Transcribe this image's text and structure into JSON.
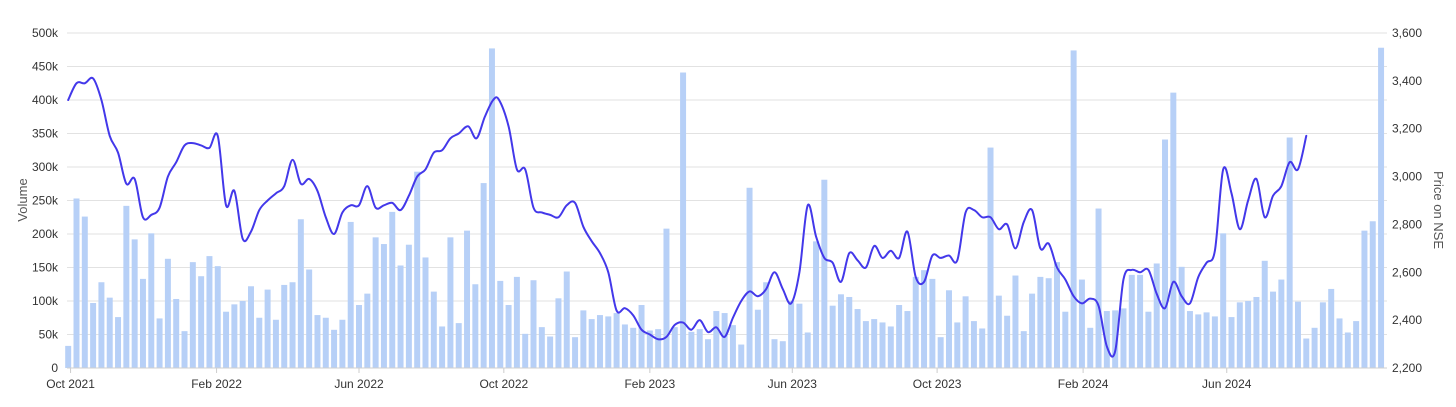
{
  "chart_data": {
    "type": "bar+line",
    "title": "",
    "xlabel": "",
    "ylabel": "Volume",
    "y2label": "Price on NSE",
    "ylim": [
      0,
      500000
    ],
    "y2lim": [
      2200,
      3600
    ],
    "x_range": [
      "2021-09-28",
      "2024-10-14"
    ],
    "grid": true,
    "legend": "none",
    "colors": {
      "bars": "#b7d0f7",
      "line": "#4338ea"
    },
    "y_ticks": [
      "0",
      "50k",
      "100k",
      "150k",
      "200k",
      "250k",
      "300k",
      "350k",
      "400k",
      "450k",
      "500k"
    ],
    "y2_ticks": [
      "2,200",
      "2,400",
      "2,600",
      "2,800",
      "3,000",
      "3,200",
      "3,400",
      "3,600"
    ],
    "x_ticks": [
      {
        "date": "2021-10-01",
        "label": "Oct 2021"
      },
      {
        "date": "2022-02-01",
        "label": "Feb 2022"
      },
      {
        "date": "2022-06-01",
        "label": "Jun 2022"
      },
      {
        "date": "2022-10-01",
        "label": "Oct 2022"
      },
      {
        "date": "2023-02-01",
        "label": "Feb 2023"
      },
      {
        "date": "2023-06-01",
        "label": "Jun 2023"
      },
      {
        "date": "2023-10-01",
        "label": "Oct 2023"
      },
      {
        "date": "2024-02-01",
        "label": "Feb 2024"
      },
      {
        "date": "2024-06-01",
        "label": "Jun 2024"
      }
    ],
    "series": [
      {
        "kind": "bar",
        "axis": "left",
        "start_date": "2021-09-29",
        "interval_days": 7,
        "values": [
          33000,
          253000,
          226000,
          97000,
          128000,
          105000,
          76000,
          242000,
          192000,
          133000,
          201000,
          74000,
          163000,
          103000,
          55000,
          158000,
          137000,
          167000,
          152000,
          84000,
          95000,
          100000,
          122000,
          75000,
          117000,
          72000,
          124000,
          128000,
          222000,
          147000,
          79000,
          75000,
          57000,
          72000,
          218000,
          94000,
          111000,
          195000,
          185000,
          233000,
          153000,
          184000,
          293000,
          165000,
          114000,
          62000,
          195000,
          67000,
          205000,
          125000,
          276000,
          477000,
          130000,
          94000,
          136000,
          51000,
          131000,
          61000,
          47000,
          104000,
          144000,
          46000,
          86000,
          73000,
          79000,
          77000,
          82000,
          65000,
          60000,
          94000,
          56000,
          58000,
          208000,
          61000,
          441000,
          54000,
          58000,
          43000,
          85000,
          82000,
          64000,
          35000,
          269000,
          87000,
          128000,
          43000,
          40000,
          100000,
          96000,
          53000,
          189000,
          281000,
          93000,
          110000,
          106000,
          88000,
          70000,
          73000,
          68000,
          62000,
          94000,
          85000,
          136000,
          146000,
          133000,
          46000,
          116000,
          68000,
          107000,
          70000,
          59000,
          329000,
          108000,
          78000,
          138000,
          55000,
          111000,
          136000,
          134000,
          158000,
          84000,
          474000,
          132000,
          60000,
          238000,
          85000,
          86000,
          89000,
          139000,
          139000,
          84000,
          156000,
          341000,
          411000,
          151000,
          85000,
          80000,
          83000,
          77000,
          201000,
          76000,
          98000,
          100000,
          106000,
          160000,
          114000,
          132000,
          344000,
          99000,
          44000,
          60000,
          98000,
          118000,
          74000,
          53000,
          70000,
          205000,
          219000,
          478000
        ]
      },
      {
        "kind": "line",
        "axis": "right",
        "name": "",
        "points": [
          [
            "2021-09-29",
            3320
          ],
          [
            "2021-10-06",
            3390
          ],
          [
            "2021-10-13",
            3390
          ],
          [
            "2021-10-20",
            3410
          ],
          [
            "2021-10-27",
            3320
          ],
          [
            "2021-11-03",
            3170
          ],
          [
            "2021-11-10",
            3100
          ],
          [
            "2021-11-17",
            2970
          ],
          [
            "2021-11-24",
            2990
          ],
          [
            "2021-12-01",
            2830
          ],
          [
            "2021-12-08",
            2840
          ],
          [
            "2021-12-15",
            2870
          ],
          [
            "2021-12-22",
            3000
          ],
          [
            "2021-12-29",
            3060
          ],
          [
            "2022-01-05",
            3130
          ],
          [
            "2022-01-12",
            3140
          ],
          [
            "2022-01-19",
            3130
          ],
          [
            "2022-01-26",
            3120
          ],
          [
            "2022-02-02",
            3170
          ],
          [
            "2022-02-09",
            2880
          ],
          [
            "2022-02-16",
            2940
          ],
          [
            "2022-02-23",
            2740
          ],
          [
            "2022-03-02",
            2770
          ],
          [
            "2022-03-09",
            2860
          ],
          [
            "2022-03-16",
            2900
          ],
          [
            "2022-03-23",
            2930
          ],
          [
            "2022-03-30",
            2960
          ],
          [
            "2022-04-06",
            3070
          ],
          [
            "2022-04-13",
            2970
          ],
          [
            "2022-04-20",
            2990
          ],
          [
            "2022-04-27",
            2940
          ],
          [
            "2022-05-04",
            2830
          ],
          [
            "2022-05-11",
            2760
          ],
          [
            "2022-05-18",
            2850
          ],
          [
            "2022-05-25",
            2880
          ],
          [
            "2022-06-01",
            2880
          ],
          [
            "2022-06-08",
            2960
          ],
          [
            "2022-06-15",
            2870
          ],
          [
            "2022-06-22",
            2880
          ],
          [
            "2022-06-29",
            2890
          ],
          [
            "2022-07-06",
            2860
          ],
          [
            "2022-07-13",
            2920
          ],
          [
            "2022-07-20",
            3000
          ],
          [
            "2022-07-27",
            3030
          ],
          [
            "2022-08-03",
            3100
          ],
          [
            "2022-08-10",
            3110
          ],
          [
            "2022-08-17",
            3160
          ],
          [
            "2022-08-24",
            3180
          ],
          [
            "2022-09-01",
            3210
          ],
          [
            "2022-09-08",
            3160
          ],
          [
            "2022-09-15",
            3250
          ],
          [
            "2022-09-22",
            3320
          ],
          [
            "2022-09-27",
            3320
          ],
          [
            "2022-10-05",
            3210
          ],
          [
            "2022-10-12",
            3030
          ],
          [
            "2022-10-19",
            3030
          ],
          [
            "2022-10-26",
            2870
          ],
          [
            "2022-11-02",
            2850
          ],
          [
            "2022-11-09",
            2840
          ],
          [
            "2022-11-16",
            2830
          ],
          [
            "2022-11-23",
            2880
          ],
          [
            "2022-11-30",
            2890
          ],
          [
            "2022-12-07",
            2790
          ],
          [
            "2022-12-14",
            2730
          ],
          [
            "2022-12-21",
            2680
          ],
          [
            "2022-12-28",
            2600
          ],
          [
            "2023-01-04",
            2440
          ],
          [
            "2023-01-11",
            2450
          ],
          [
            "2023-01-18",
            2420
          ],
          [
            "2023-01-25",
            2360
          ],
          [
            "2023-02-01",
            2340
          ],
          [
            "2023-02-08",
            2320
          ],
          [
            "2023-02-15",
            2330
          ],
          [
            "2023-02-22",
            2380
          ],
          [
            "2023-03-01",
            2390
          ],
          [
            "2023-03-08",
            2360
          ],
          [
            "2023-03-15",
            2400
          ],
          [
            "2023-03-22",
            2350
          ],
          [
            "2023-03-29",
            2370
          ],
          [
            "2023-04-05",
            2330
          ],
          [
            "2023-04-12",
            2410
          ],
          [
            "2023-04-19",
            2480
          ],
          [
            "2023-04-26",
            2520
          ],
          [
            "2023-05-03",
            2500
          ],
          [
            "2023-05-10",
            2530
          ],
          [
            "2023-05-17",
            2600
          ],
          [
            "2023-05-24",
            2530
          ],
          [
            "2023-05-31",
            2470
          ],
          [
            "2023-06-07",
            2600
          ],
          [
            "2023-06-14",
            2880
          ],
          [
            "2023-06-21",
            2750
          ],
          [
            "2023-06-28",
            2660
          ],
          [
            "2023-07-05",
            2640
          ],
          [
            "2023-07-12",
            2560
          ],
          [
            "2023-07-19",
            2680
          ],
          [
            "2023-07-26",
            2650
          ],
          [
            "2023-08-02",
            2620
          ],
          [
            "2023-08-09",
            2710
          ],
          [
            "2023-08-16",
            2660
          ],
          [
            "2023-08-23",
            2690
          ],
          [
            "2023-08-30",
            2660
          ],
          [
            "2023-09-06",
            2770
          ],
          [
            "2023-09-13",
            2580
          ],
          [
            "2023-09-20",
            2560
          ],
          [
            "2023-09-27",
            2670
          ],
          [
            "2023-10-04",
            2660
          ],
          [
            "2023-10-11",
            2670
          ],
          [
            "2023-10-18",
            2650
          ],
          [
            "2023-10-25",
            2850
          ],
          [
            "2023-11-01",
            2860
          ],
          [
            "2023-11-08",
            2830
          ],
          [
            "2023-11-15",
            2830
          ],
          [
            "2023-11-22",
            2780
          ],
          [
            "2023-11-29",
            2800
          ],
          [
            "2023-12-06",
            2700
          ],
          [
            "2023-12-13",
            2810
          ],
          [
            "2023-12-20",
            2860
          ],
          [
            "2023-12-27",
            2700
          ],
          [
            "2024-01-03",
            2720
          ],
          [
            "2024-01-10",
            2620
          ],
          [
            "2024-01-17",
            2570
          ],
          [
            "2024-01-24",
            2500
          ],
          [
            "2024-01-31",
            2470
          ],
          [
            "2024-02-07",
            2490
          ],
          [
            "2024-02-14",
            2460
          ],
          [
            "2024-02-21",
            2290
          ],
          [
            "2024-02-28",
            2270
          ],
          [
            "2024-03-06",
            2570
          ],
          [
            "2024-03-13",
            2610
          ],
          [
            "2024-03-20",
            2600
          ],
          [
            "2024-03-27",
            2610
          ],
          [
            "2024-04-03",
            2510
          ],
          [
            "2024-04-10",
            2450
          ],
          [
            "2024-04-17",
            2560
          ],
          [
            "2024-04-24",
            2500
          ],
          [
            "2024-05-01",
            2470
          ],
          [
            "2024-05-08",
            2580
          ],
          [
            "2024-05-15",
            2640
          ],
          [
            "2024-05-22",
            2690
          ],
          [
            "2024-05-29",
            3030
          ],
          [
            "2024-06-05",
            2930
          ],
          [
            "2024-06-12",
            2780
          ],
          [
            "2024-06-19",
            2900
          ],
          [
            "2024-06-26",
            2990
          ],
          [
            "2024-07-03",
            2830
          ],
          [
            "2024-07-10",
            2920
          ],
          [
            "2024-07-17",
            2960
          ],
          [
            "2024-07-24",
            3060
          ],
          [
            "2024-07-31",
            3030
          ],
          [
            "2024-08-07",
            3170
          ]
        ]
      }
    ]
  }
}
